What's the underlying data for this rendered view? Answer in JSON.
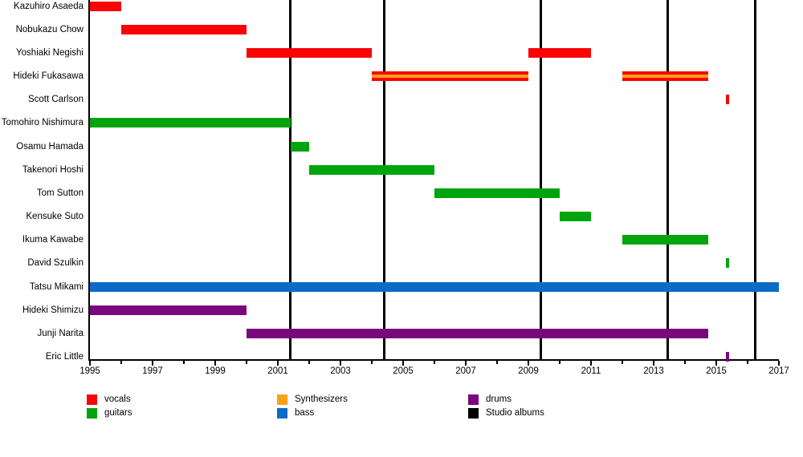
{
  "chart_data": {
    "type": "timeline",
    "title": "",
    "x_axis": {
      "min": 1995,
      "max": 2017,
      "major_tick_years": [
        1995,
        1997,
        1999,
        2001,
        2003,
        2005,
        2007,
        2009,
        2011,
        2013,
        2015,
        2017
      ],
      "major_tick_labels": [
        "1995",
        "1997",
        "1999",
        "2001",
        "2003",
        "2005",
        "2007",
        "2009",
        "2011",
        "2013",
        "2015",
        "2017"
      ],
      "minor_tick_years": [
        1996,
        1998,
        2000,
        2002,
        2004,
        2006,
        2008,
        2010,
        2012,
        2014,
        2016
      ],
      "grid": false
    },
    "colors": {
      "vocals": "#F90404",
      "guitars": "#00A40C",
      "synthesizers": "#F9A11B",
      "bass": "#0B6CC8",
      "drums": "#7A077D",
      "studio_albums": "#000000"
    },
    "members": [
      {
        "name": "Kazuhiro Asaeda",
        "role": "vocals",
        "periods": [
          [
            1995.0,
            1996.0
          ]
        ]
      },
      {
        "name": "Nobukazu Chow",
        "role": "vocals",
        "periods": [
          [
            1996.0,
            2000.0
          ]
        ]
      },
      {
        "name": "Yoshiaki Negishi",
        "role": "vocals",
        "periods": [
          [
            2000.0,
            2004.0
          ],
          [
            2009.0,
            2011.0
          ]
        ]
      },
      {
        "name": "Hideki Fukasawa",
        "role": "vocals_synthesizers",
        "periods": [
          [
            2004.0,
            2009.0
          ],
          [
            2012.0,
            2014.75
          ]
        ]
      },
      {
        "name": "Scott Carlson",
        "role": "vocals",
        "periods": [
          [
            2015.3,
            2015.4
          ]
        ]
      },
      {
        "name": "Tomohiro Nishimura",
        "role": "guitars",
        "periods": [
          [
            1995.0,
            2001.4
          ]
        ]
      },
      {
        "name": "Osamu Hamada",
        "role": "guitars",
        "periods": [
          [
            2001.4,
            2002.0
          ]
        ]
      },
      {
        "name": "Takenori Hoshi",
        "role": "guitars",
        "periods": [
          [
            2002.0,
            2006.0
          ]
        ]
      },
      {
        "name": "Tom Sutton",
        "role": "guitars",
        "periods": [
          [
            2006.0,
            2010.0
          ]
        ]
      },
      {
        "name": "Kensuke Suto",
        "role": "guitars",
        "periods": [
          [
            2010.0,
            2011.0
          ]
        ]
      },
      {
        "name": "Ikuma Kawabe",
        "role": "guitars",
        "periods": [
          [
            2012.0,
            2014.75
          ]
        ]
      },
      {
        "name": "David Szulkin",
        "role": "guitars",
        "periods": [
          [
            2015.3,
            2015.4
          ]
        ]
      },
      {
        "name": "Tatsu Mikami",
        "role": "bass",
        "periods": [
          [
            1995.0,
            2017.0
          ]
        ]
      },
      {
        "name": "Hideki Shimizu",
        "role": "drums",
        "periods": [
          [
            1995.0,
            2000.0
          ]
        ]
      },
      {
        "name": "Junji Narita",
        "role": "drums",
        "periods": [
          [
            2000.0,
            2014.75
          ]
        ]
      },
      {
        "name": "Eric Little",
        "role": "drums",
        "periods": [
          [
            2015.3,
            2015.4
          ]
        ]
      }
    ],
    "studio_album_years": [
      2001.4,
      2004.4,
      2009.4,
      2013.45,
      2016.25
    ],
    "legend": [
      {
        "label": "vocals",
        "color_key": "vocals"
      },
      {
        "label": "guitars",
        "color_key": "guitars"
      },
      {
        "label": "Synthesizers",
        "color_key": "synthesizers"
      },
      {
        "label": "bass",
        "color_key": "bass"
      },
      {
        "label": "drums",
        "color_key": "drums"
      },
      {
        "label": "Studio albums",
        "color_key": "studio_albums"
      }
    ],
    "legend_position": "bottom"
  }
}
